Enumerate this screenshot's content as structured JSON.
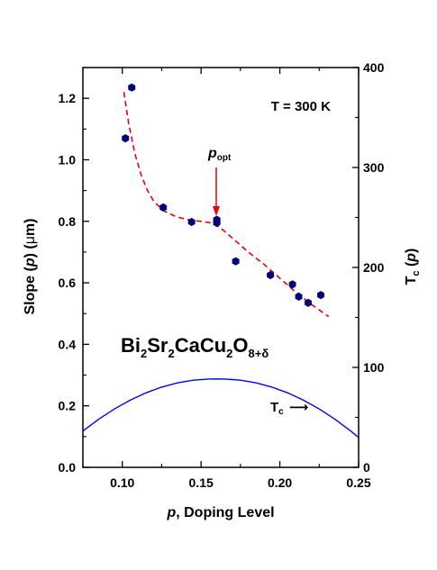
{
  "chart_data": {
    "type": "scatter",
    "title": "",
    "annotation_temperature": "T = 300 K",
    "xlabel": {
      "var": "p",
      "text": ", Doping Level"
    },
    "ylabel_left": {
      "pre": "Slope (",
      "var": "p",
      "mid": ") (",
      "sym": "μ",
      "post": "m)"
    },
    "ylabel_right": {
      "pre": "T",
      "sub": "c",
      "mid": " (",
      "var": "p",
      "post": ")"
    },
    "xlim": [
      0.075,
      0.25
    ],
    "ylim_left": [
      0.0,
      1.3
    ],
    "ylim_right": [
      0,
      400
    ],
    "x_ticks": [
      0.1,
      0.15,
      0.2,
      0.25
    ],
    "x_tick_labels": [
      "0.10",
      "0.15",
      "0.20",
      "0.25"
    ],
    "y_ticks_left": [
      0.0,
      0.2,
      0.4,
      0.6,
      0.8,
      1.0,
      1.2
    ],
    "y_tick_labels_left": [
      "0.0",
      "0.2",
      "0.4",
      "0.6",
      "0.8",
      "1.0",
      "1.2"
    ],
    "y_ticks_right": [
      0,
      100,
      200,
      300,
      400
    ],
    "y_tick_labels_right": [
      "0",
      "100",
      "200",
      "300",
      "400"
    ],
    "series": [
      {
        "marker": "hexagon",
        "color": "#00007a",
        "axis": "left",
        "points": [
          {
            "x": 0.102,
            "y": 1.07
          },
          {
            "x": 0.106,
            "y": 1.235
          },
          {
            "x": 0.126,
            "y": 0.845
          },
          {
            "x": 0.144,
            "y": 0.798
          },
          {
            "x": 0.16,
            "y": 0.805
          },
          {
            "x": 0.16,
            "y": 0.795
          },
          {
            "x": 0.172,
            "y": 0.67
          },
          {
            "x": 0.194,
            "y": 0.625
          },
          {
            "x": 0.208,
            "y": 0.595
          },
          {
            "x": 0.212,
            "y": 0.555
          },
          {
            "x": 0.218,
            "y": 0.535
          },
          {
            "x": 0.226,
            "y": 0.56
          }
        ]
      },
      {
        "style": "dashed",
        "color": "#e8000b",
        "axis": "left",
        "points": [
          {
            "x": 0.101,
            "y": 1.22
          },
          {
            "x": 0.104,
            "y": 1.12
          },
          {
            "x": 0.108,
            "y": 1.02
          },
          {
            "x": 0.112,
            "y": 0.95
          },
          {
            "x": 0.116,
            "y": 0.9
          },
          {
            "x": 0.12,
            "y": 0.865
          },
          {
            "x": 0.126,
            "y": 0.835
          },
          {
            "x": 0.134,
            "y": 0.815
          },
          {
            "x": 0.142,
            "y": 0.805
          },
          {
            "x": 0.15,
            "y": 0.8
          },
          {
            "x": 0.156,
            "y": 0.795
          },
          {
            "x": 0.162,
            "y": 0.78
          },
          {
            "x": 0.17,
            "y": 0.745
          },
          {
            "x": 0.18,
            "y": 0.7
          },
          {
            "x": 0.19,
            "y": 0.66
          },
          {
            "x": 0.2,
            "y": 0.615
          },
          {
            "x": 0.21,
            "y": 0.57
          },
          {
            "x": 0.22,
            "y": 0.53
          },
          {
            "x": 0.231,
            "y": 0.49
          }
        ]
      },
      {
        "style": "solid",
        "color": "#0000ff",
        "axis": "right",
        "label": {
          "pre": "T",
          "sub": "c",
          "arrow": "⟶"
        },
        "points": [
          {
            "x": 0.075,
            "y": 36.3
          },
          {
            "x": 0.085,
            "y": 48.1
          },
          {
            "x": 0.095,
            "y": 58.4
          },
          {
            "x": 0.105,
            "y": 67.2
          },
          {
            "x": 0.115,
            "y": 74.5
          },
          {
            "x": 0.125,
            "y": 80.3
          },
          {
            "x": 0.135,
            "y": 84.5
          },
          {
            "x": 0.145,
            "y": 87.2
          },
          {
            "x": 0.155,
            "y": 88.4
          },
          {
            "x": 0.16,
            "y": 88.5
          },
          {
            "x": 0.165,
            "y": 88.4
          },
          {
            "x": 0.175,
            "y": 87.2
          },
          {
            "x": 0.185,
            "y": 84.5
          },
          {
            "x": 0.195,
            "y": 80.3
          },
          {
            "x": 0.205,
            "y": 74.5
          },
          {
            "x": 0.215,
            "y": 67.2
          },
          {
            "x": 0.225,
            "y": 58.4
          },
          {
            "x": 0.235,
            "y": 48.1
          },
          {
            "x": 0.245,
            "y": 36.3
          },
          {
            "x": 0.25,
            "y": 29.9
          }
        ]
      }
    ],
    "annotations": {
      "popt": {
        "var": "p",
        "sub": "opt",
        "x": 0.16,
        "arrow_to_y": 0.815
      },
      "formula": [
        "Bi",
        "2",
        "Sr",
        "2",
        "CaCu",
        "2",
        "O",
        "8+δ"
      ]
    }
  }
}
